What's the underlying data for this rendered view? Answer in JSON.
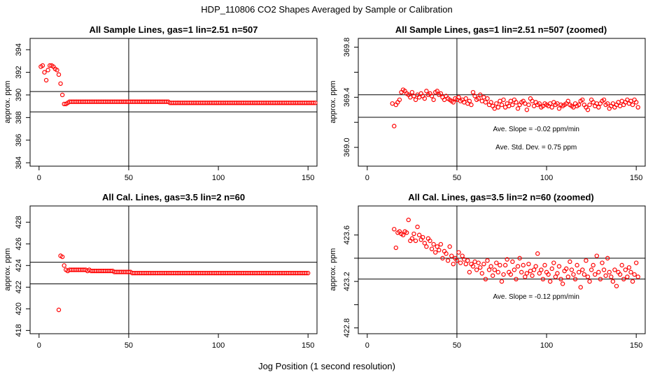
{
  "page": {
    "title": "HDP_110806  CO2 Shapes Averaged by Sample or Calibration",
    "xlabel": "Jog Position (1 second resolution)"
  },
  "chart_data": [
    {
      "type": "scatter",
      "title": "All Sample Lines, gas=1 lin=2.51 n=507",
      "ylabel": "approx. ppm",
      "xlim": [
        -5,
        155
      ],
      "ylim": [
        383.7,
        395.0
      ],
      "xticks": [
        0,
        50,
        100,
        150
      ],
      "yticks": [
        384,
        386,
        388,
        390,
        392,
        394
      ],
      "hlines": [
        390.3,
        388.5
      ],
      "vline": 50,
      "color": "#ff0000",
      "annotations": [],
      "series": [
        {
          "x_start": 1,
          "values": [
            392.5,
            392.6,
            392.0,
            391.3,
            392.2,
            392.6,
            392.6,
            392.5,
            392.3,
            392.2,
            391.8,
            391.0,
            390.0,
            389.2,
            389.2,
            389.3,
            389.4,
            389.4,
            389.4,
            389.4,
            389.4,
            389.4,
            389.4,
            389.4,
            389.4,
            389.4,
            389.4,
            389.4,
            389.4,
            389.4,
            389.4,
            389.4,
            389.4,
            389.4,
            389.4,
            389.4,
            389.4,
            389.4,
            389.4,
            389.4,
            389.4,
            389.4,
            389.4,
            389.4,
            389.4,
            389.4,
            389.4,
            389.4,
            389.4,
            389.4,
            389.4,
            389.4,
            389.4,
            389.4,
            389.4,
            389.4,
            389.4,
            389.4,
            389.4,
            389.4,
            389.4,
            389.4,
            389.4,
            389.4,
            389.4,
            389.4,
            389.4,
            389.4,
            389.4,
            389.4,
            389.4,
            389.4,
            389.3,
            389.3,
            389.3,
            389.3,
            389.3,
            389.3,
            389.3,
            389.3,
            389.3,
            389.3,
            389.3,
            389.3,
            389.3,
            389.3,
            389.3,
            389.3,
            389.3,
            389.3,
            389.3,
            389.3,
            389.3,
            389.3,
            389.3,
            389.3,
            389.3,
            389.3,
            389.3,
            389.3,
            389.3,
            389.3,
            389.3,
            389.3,
            389.3,
            389.3,
            389.3,
            389.3,
            389.3,
            389.3,
            389.3,
            389.3,
            389.3,
            389.3,
            389.3,
            389.3,
            389.3,
            389.3,
            389.3,
            389.3,
            389.3,
            389.3,
            389.3,
            389.3,
            389.3,
            389.3,
            389.3,
            389.3,
            389.3,
            389.3,
            389.3,
            389.3,
            389.3,
            389.3,
            389.3,
            389.3,
            389.3,
            389.3,
            389.3,
            389.3,
            389.3,
            389.3,
            389.3,
            389.3,
            389.3,
            389.3,
            389.3,
            389.3,
            389.3,
            389.3,
            389.3,
            389.3,
            389.3,
            389.3
          ]
        }
      ]
    },
    {
      "type": "scatter",
      "title": "All Sample Lines, gas=1 lin=2.51 n=507 (zoomed)",
      "ylabel": "approx. ppm",
      "xlim": [
        -5,
        155
      ],
      "ylim": [
        368.85,
        369.87
      ],
      "xticks": [
        0,
        50,
        100,
        150
      ],
      "yticks": [
        369.0,
        369.2,
        369.4,
        369.6,
        369.8
      ],
      "yticklabels": [
        "369.0",
        "",
        "369.4",
        "",
        "369.8"
      ],
      "hlines": [
        369.42,
        369.24
      ],
      "vline": 50,
      "color": "#ff0000",
      "annotations": [
        "Ave. Slope =  -0.02  ppm/min",
        "Ave. Std. Dev. =  0.75  ppm"
      ],
      "series": [
        {
          "x_start": 14,
          "values": [
            369.35,
            369.17,
            369.34,
            369.36,
            369.38,
            369.44,
            369.46,
            369.45,
            369.43,
            369.42,
            369.4,
            369.44,
            369.41,
            369.38,
            369.42,
            369.4,
            369.43,
            369.41,
            369.39,
            369.45,
            369.42,
            369.43,
            369.41,
            369.38,
            369.44,
            369.45,
            369.42,
            369.43,
            369.4,
            369.38,
            369.41,
            369.39,
            369.38,
            369.37,
            369.36,
            369.39,
            369.38,
            369.4,
            369.37,
            369.38,
            369.36,
            369.39,
            369.35,
            369.37,
            369.34,
            369.44,
            369.41,
            369.38,
            369.39,
            369.42,
            369.37,
            369.4,
            369.36,
            369.39,
            369.34,
            369.36,
            369.33,
            369.31,
            369.35,
            369.32,
            369.37,
            369.34,
            369.38,
            369.32,
            369.35,
            369.33,
            369.37,
            369.34,
            369.38,
            369.36,
            369.31,
            369.34,
            369.36,
            369.37,
            369.35,
            369.3,
            369.34,
            369.39,
            369.37,
            369.33,
            369.36,
            369.34,
            369.35,
            369.32,
            369.33,
            369.35,
            369.34,
            369.33,
            369.35,
            369.32,
            369.36,
            369.34,
            369.35,
            369.31,
            369.34,
            369.33,
            369.34,
            369.35,
            369.37,
            369.34,
            369.33,
            369.32,
            369.35,
            369.33,
            369.34,
            369.37,
            369.38,
            369.34,
            369.32,
            369.3,
            369.34,
            369.38,
            369.36,
            369.33,
            369.35,
            369.32,
            369.35,
            369.37,
            369.38,
            369.34,
            369.35,
            369.31,
            369.33,
            369.35,
            369.32,
            369.34,
            369.36,
            369.33,
            369.37,
            369.34,
            369.36,
            369.38,
            369.35,
            369.37,
            369.34,
            369.38,
            369.36,
            369.32
          ]
        }
      ]
    },
    {
      "type": "scatter",
      "title": "All Cal. Lines, gas=3.5 lin=2 n=60",
      "ylabel": "approx. ppm",
      "xlim": [
        -5,
        155
      ],
      "ylim": [
        417.7,
        429.5
      ],
      "xticks": [
        0,
        50,
        100,
        150
      ],
      "yticks": [
        418,
        420,
        422,
        424,
        426,
        428
      ],
      "hlines": [
        424.3,
        422.3
      ],
      "vline": 50,
      "color": "#ff0000",
      "annotations": [],
      "series": [
        {
          "x_start": 11,
          "values": [
            419.9,
            424.9,
            424.8,
            424.0,
            423.6,
            423.5,
            423.6,
            423.6,
            423.6,
            423.6,
            423.6,
            423.6,
            423.6,
            423.6,
            423.6,
            423.6,
            423.5,
            423.6,
            423.5,
            423.5,
            423.5,
            423.5,
            423.5,
            423.5,
            423.5,
            423.5,
            423.5,
            423.5,
            423.5,
            423.5,
            423.5,
            423.4,
            423.4,
            423.4,
            423.4,
            423.4,
            423.4,
            423.4,
            423.4,
            423.4,
            423.4,
            423.3,
            423.3,
            423.3,
            423.3,
            423.3,
            423.3,
            423.3,
            423.3,
            423.3,
            423.3,
            423.3,
            423.3,
            423.3,
            423.3,
            423.3,
            423.3,
            423.3,
            423.3,
            423.3,
            423.3,
            423.3,
            423.3,
            423.3,
            423.3,
            423.3,
            423.3,
            423.3,
            423.3,
            423.3,
            423.3,
            423.3,
            423.3,
            423.3,
            423.3,
            423.3,
            423.3,
            423.3,
            423.3,
            423.3,
            423.3,
            423.3,
            423.3,
            423.3,
            423.3,
            423.3,
            423.3,
            423.3,
            423.3,
            423.3,
            423.3,
            423.3,
            423.3,
            423.3,
            423.3,
            423.3,
            423.3,
            423.3,
            423.3,
            423.3,
            423.3,
            423.3,
            423.3,
            423.3,
            423.3,
            423.3,
            423.3,
            423.3,
            423.3,
            423.3,
            423.3,
            423.3,
            423.3,
            423.3,
            423.3,
            423.3,
            423.3,
            423.3,
            423.3,
            423.3,
            423.3,
            423.3,
            423.3,
            423.3,
            423.3,
            423.3,
            423.3,
            423.3,
            423.3,
            423.3,
            423.3,
            423.3,
            423.3,
            423.3,
            423.3,
            423.3,
            423.3,
            423.3,
            423.3,
            423.3
          ]
        }
      ]
    },
    {
      "type": "scatter",
      "title": "All Cal. Lines, gas=3.5 lin=2 n=60 (zoomed)",
      "ylabel": "approx. ppm",
      "xlim": [
        -5,
        155
      ],
      "ylim": [
        422.75,
        423.85
      ],
      "xticks": [
        0,
        50,
        100,
        150
      ],
      "yticks": [
        422.8,
        423.0,
        423.2,
        423.4,
        423.6
      ],
      "yticklabels": [
        "422.8",
        "",
        "423.2",
        "",
        "423.6"
      ],
      "hlines": [
        423.4,
        423.22
      ],
      "vline": 50,
      "color": "#ff0000",
      "annotations": [
        "Ave. Slope =  -0.12  ppm/min"
      ],
      "series": [
        {
          "x_start": 15,
          "values": [
            423.65,
            423.49,
            423.62,
            423.63,
            423.61,
            423.6,
            423.63,
            423.62,
            423.73,
            423.55,
            423.57,
            423.61,
            423.55,
            423.67,
            423.6,
            423.56,
            423.58,
            423.53,
            423.5,
            423.57,
            423.55,
            423.48,
            423.52,
            423.45,
            423.5,
            423.47,
            423.52,
            423.4,
            423.46,
            423.44,
            423.38,
            423.5,
            423.42,
            423.35,
            423.4,
            423.38,
            423.45,
            423.36,
            423.42,
            423.39,
            423.35,
            423.38,
            423.28,
            423.35,
            423.33,
            423.37,
            423.3,
            423.36,
            423.32,
            423.27,
            423.35,
            423.22,
            423.38,
            423.3,
            423.33,
            423.25,
            423.3,
            423.36,
            423.28,
            423.34,
            423.2,
            423.26,
            423.34,
            423.39,
            423.28,
            423.26,
            423.37,
            423.3,
            423.22,
            423.33,
            423.4,
            423.28,
            423.34,
            423.24,
            423.27,
            423.35,
            423.29,
            423.25,
            423.3,
            423.33,
            423.44,
            423.27,
            423.3,
            423.22,
            423.34,
            423.28,
            423.26,
            423.2,
            423.31,
            423.36,
            423.24,
            423.27,
            423.33,
            423.22,
            423.18,
            423.29,
            423.31,
            423.24,
            423.37,
            423.3,
            423.26,
            423.22,
            423.34,
            423.28,
            423.15,
            423.3,
            423.26,
            423.38,
            423.24,
            423.2,
            423.3,
            423.34,
            423.26,
            423.42,
            423.28,
            423.22,
            423.36,
            423.3,
            423.25,
            423.4,
            423.28,
            423.24,
            423.2,
            423.3,
            423.16,
            423.28,
            423.26,
            423.34,
            423.22,
            423.3,
            423.24,
            423.32,
            423.28,
            423.2,
            423.26,
            423.36,
            423.24
          ]
        }
      ]
    }
  ]
}
